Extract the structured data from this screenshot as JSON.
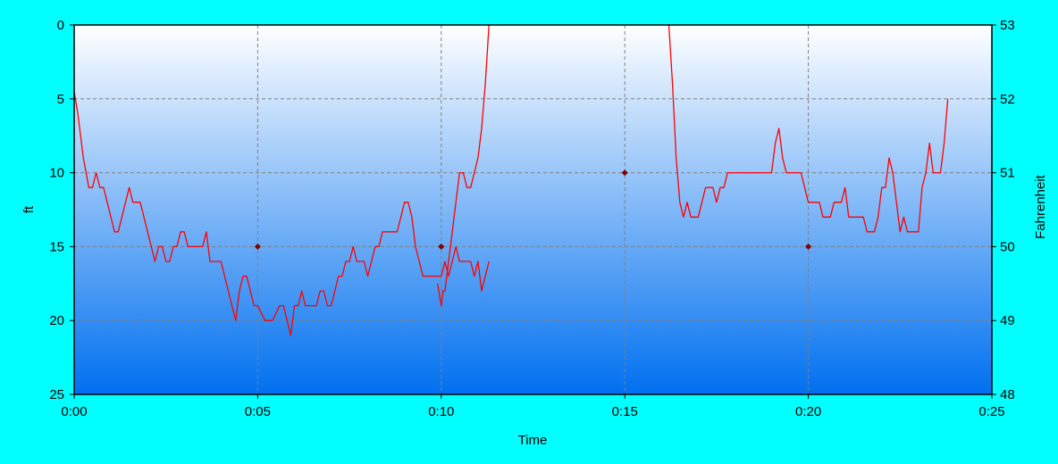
{
  "colors": {
    "background": "#00FFFF",
    "plot_gradient_top": "#FFFFFF",
    "plot_gradient_bottom": "#0070F0",
    "series_line": "#FF0000",
    "grid": "#808080",
    "marker": "#800000"
  },
  "chart_data": {
    "type": "line",
    "title": "",
    "xlabel": "Time",
    "ylabel": "ft",
    "y2label": "Fahrenheit",
    "xlim": [
      0,
      25
    ],
    "ylim": [
      0,
      25
    ],
    "y_inverted": true,
    "y2lim": [
      48,
      53
    ],
    "grid": true,
    "x_ticks": [
      {
        "value": 0,
        "label": "0:00"
      },
      {
        "value": 5,
        "label": "0:05"
      },
      {
        "value": 10,
        "label": "0:10"
      },
      {
        "value": 15,
        "label": "0:15"
      },
      {
        "value": 20,
        "label": "0:20"
      },
      {
        "value": 25,
        "label": "0:25"
      }
    ],
    "y_ticks": [
      {
        "value": 0,
        "label": "0"
      },
      {
        "value": 5,
        "label": "5"
      },
      {
        "value": 10,
        "label": "10"
      },
      {
        "value": 15,
        "label": "15"
      },
      {
        "value": 20,
        "label": "20"
      },
      {
        "value": 25,
        "label": "25"
      }
    ],
    "y2_ticks": [
      {
        "value": 53,
        "label": "53"
      },
      {
        "value": 52,
        "label": "52"
      },
      {
        "value": 51,
        "label": "51"
      },
      {
        "value": 50,
        "label": "50"
      },
      {
        "value": 49,
        "label": "49"
      },
      {
        "value": 48,
        "label": "48"
      }
    ],
    "series": [
      {
        "type": "line",
        "axis": "left",
        "x": [
          0.0,
          0.1,
          0.25,
          0.4,
          0.5,
          0.6,
          0.7,
          0.8,
          1.0,
          1.1,
          1.2,
          1.3,
          1.4,
          1.5,
          1.6,
          1.7,
          1.8,
          1.9,
          2.0,
          2.1,
          2.2,
          2.3,
          2.4,
          2.5,
          2.6,
          2.7,
          2.8,
          2.9,
          3.0,
          3.1,
          3.2,
          3.3,
          3.5,
          3.6,
          3.7,
          3.8,
          3.9,
          4.0,
          4.1,
          4.2,
          4.3,
          4.4,
          4.5,
          4.6,
          4.7,
          4.8,
          4.9,
          5.0,
          5.2,
          5.4,
          5.6,
          5.7,
          5.8,
          5.9,
          6.0,
          6.1,
          6.2,
          6.3,
          6.4,
          6.5,
          6.6,
          6.7,
          6.8,
          6.9,
          7.0,
          7.1,
          7.2,
          7.3,
          7.4,
          7.5,
          7.6,
          7.7,
          7.8,
          7.9,
          8.0,
          8.1,
          8.2,
          8.3,
          8.4,
          8.5,
          8.6,
          8.7,
          8.8,
          8.9,
          9.0,
          9.1,
          9.2,
          9.3,
          9.4,
          9.5,
          9.6,
          9.7,
          9.8,
          9.9,
          10.0,
          10.1,
          10.2,
          10.3,
          10.4,
          10.5,
          10.6,
          10.7,
          10.8,
          10.9,
          11.0,
          11.1,
          11.2,
          11.3
        ],
        "y": [
          4.5,
          6.0,
          9.0,
          11.0,
          11.0,
          10.0,
          11.0,
          11.0,
          13.0,
          14.0,
          14.0,
          13.0,
          12.0,
          11.0,
          12.0,
          12.0,
          12.0,
          13.0,
          14.0,
          15.0,
          16.0,
          15.0,
          15.0,
          16.0,
          16.0,
          15.0,
          15.0,
          14.0,
          14.0,
          15.0,
          15.0,
          15.0,
          15.0,
          14.0,
          16.0,
          16.0,
          16.0,
          16.0,
          17.0,
          18.0,
          19.0,
          20.0,
          18.0,
          17.0,
          17.0,
          18.0,
          19.0,
          19.0,
          20.0,
          20.0,
          19.0,
          19.0,
          20.0,
          21.0,
          19.0,
          19.0,
          18.0,
          19.0,
          19.0,
          19.0,
          19.0,
          18.0,
          18.0,
          19.0,
          19.0,
          18.0,
          17.0,
          17.0,
          16.0,
          16.0,
          15.0,
          16.0,
          16.0,
          16.0,
          17.0,
          16.0,
          15.0,
          15.0,
          14.0,
          14.0,
          14.0,
          14.0,
          14.0,
          13.0,
          12.0,
          12.0,
          13.0,
          15.0,
          16.0,
          17.0,
          17.0,
          17.0,
          17.0,
          17.0,
          17.0,
          16.0,
          17.0,
          16.0,
          15.0,
          16.0,
          16.0,
          16.0,
          16.0,
          17.0,
          16.0,
          18.0,
          17.0,
          16.0
        ]
      },
      {
        "type": "line",
        "axis": "left",
        "x": [
          9.9,
          10.0,
          10.05,
          10.1,
          10.2,
          10.3,
          10.4,
          10.5,
          10.6,
          10.7,
          10.8,
          10.9,
          11.0,
          11.1,
          11.2,
          11.3
        ],
        "y": [
          17.5,
          19.0,
          18.0,
          18.0,
          16.0,
          14.0,
          12.0,
          10.0,
          10.0,
          11.0,
          11.0,
          10.0,
          9.0,
          7.0,
          4.0,
          0.0
        ]
      },
      {
        "type": "line",
        "axis": "left",
        "x": [
          16.2,
          16.3,
          16.4,
          16.5,
          16.6,
          16.7,
          16.8,
          16.9,
          17.0,
          17.1,
          17.2,
          17.3,
          17.4,
          17.5,
          17.6,
          17.7,
          17.8,
          17.9,
          18.0,
          18.2,
          18.4,
          18.6,
          18.8,
          19.0,
          19.1,
          19.2,
          19.3,
          19.4,
          19.5,
          19.6,
          19.7,
          19.8,
          19.9,
          20.0,
          20.1,
          20.2,
          20.3,
          20.4,
          20.5,
          20.6,
          20.7,
          20.8,
          20.9,
          21.0,
          21.1,
          21.2,
          21.3,
          21.4,
          21.5,
          21.6,
          21.7,
          21.8,
          21.9,
          22.0,
          22.1,
          22.2,
          22.3,
          22.4,
          22.5,
          22.6,
          22.7,
          22.8,
          22.9,
          23.0,
          23.1,
          23.2,
          23.3,
          23.4,
          23.5,
          23.6,
          23.7,
          23.8
        ],
        "y": [
          0.0,
          4.0,
          9.0,
          12.0,
          13.0,
          12.0,
          13.0,
          13.0,
          13.0,
          12.0,
          11.0,
          11.0,
          11.0,
          12.0,
          11.0,
          11.0,
          10.0,
          10.0,
          10.0,
          10.0,
          10.0,
          10.0,
          10.0,
          10.0,
          8.0,
          7.0,
          9.0,
          10.0,
          10.0,
          10.0,
          10.0,
          10.0,
          11.0,
          12.0,
          12.0,
          12.0,
          12.0,
          13.0,
          13.0,
          13.0,
          12.0,
          12.0,
          12.0,
          11.0,
          13.0,
          13.0,
          13.0,
          13.0,
          13.0,
          14.0,
          14.0,
          14.0,
          13.0,
          11.0,
          11.0,
          9.0,
          10.0,
          12.0,
          14.0,
          13.0,
          14.0,
          14.0,
          14.0,
          14.0,
          11.0,
          10.0,
          8.0,
          10.0,
          10.0,
          10.0,
          8.0,
          5.0
        ]
      },
      {
        "type": "scatter",
        "axis": "right",
        "x": [
          5,
          10,
          15,
          20
        ],
        "y": [
          50,
          50,
          51,
          50
        ]
      }
    ]
  }
}
